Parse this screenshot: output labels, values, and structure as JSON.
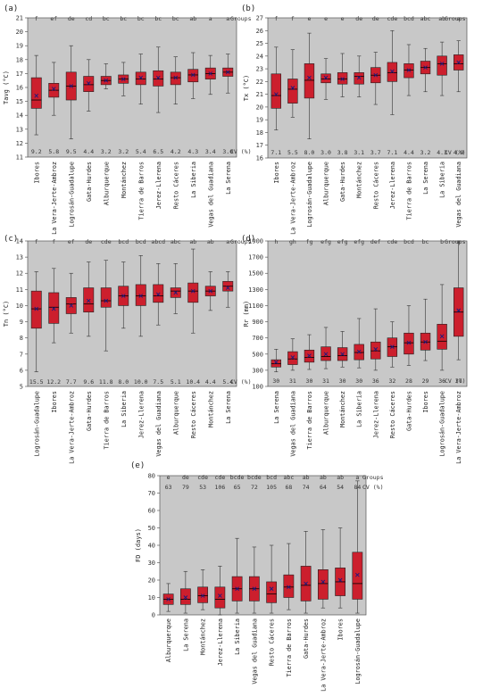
{
  "panel_colors": {
    "background": "#c8c8c8",
    "box": "#cc1f2d",
    "mean": "#1a1a80",
    "median": "#000000",
    "text": "#333333"
  },
  "chart_data": [
    {
      "panel_label": "(a)",
      "type": "boxplot",
      "ylabel": "Tavg (°C)",
      "ylim": [
        11,
        21
      ],
      "yticks": [
        11,
        12,
        13,
        14,
        15,
        16,
        17,
        18,
        19,
        20,
        21
      ],
      "groups_label": "Groups",
      "cv_label": "CV (%)",
      "categories": [
        "Ibores",
        "La Vera-Jerte-Ambroz",
        "Logrosán-Guadalupe",
        "Gata-Hurdes",
        "Alburquerque",
        "Montánchez",
        "Tierra de Barros",
        "Jerez-Llerena",
        "Resto Cáceres",
        "La Siberia",
        "Vegas del Guadiana",
        "La Serena"
      ],
      "groups": [
        "f",
        "ef",
        "de",
        "cd",
        "bc",
        "bc",
        "bc",
        "bc",
        "bc",
        "ab",
        "a",
        "a"
      ],
      "cv": [
        "9.2",
        "5.8",
        "9.5",
        "4.4",
        "3.2",
        "3.2",
        "5.4",
        "6.5",
        "4.2",
        "4.3",
        "3.4",
        "3.0"
      ],
      "whisker_low": [
        12.6,
        14.0,
        12.3,
        14.3,
        15.9,
        15.4,
        14.8,
        14.2,
        14.8,
        15.2,
        15.5,
        15.6
      ],
      "q1": [
        14.5,
        15.3,
        15.1,
        15.7,
        16.2,
        16.3,
        16.2,
        16.1,
        16.2,
        16.4,
        16.6,
        16.8
      ],
      "median": [
        15.1,
        15.8,
        16.1,
        16.2,
        16.5,
        16.6,
        16.6,
        16.6,
        16.7,
        16.9,
        17.0,
        17.1
      ],
      "q3": [
        16.7,
        16.3,
        17.1,
        16.8,
        16.8,
        16.9,
        17.1,
        17.2,
        17.1,
        17.3,
        17.4,
        17.4
      ],
      "whisker_high": [
        18.3,
        17.8,
        19.0,
        18.0,
        17.7,
        17.8,
        18.4,
        18.9,
        18.2,
        18.5,
        18.3,
        18.4
      ],
      "mean": [
        15.4,
        15.9,
        16.1,
        16.3,
        16.5,
        16.6,
        16.7,
        16.7,
        16.7,
        16.9,
        17.0,
        17.1
      ]
    },
    {
      "panel_label": "(b)",
      "type": "boxplot",
      "ylabel": "Tx (°C)",
      "ylim": [
        16,
        27
      ],
      "yticks": [
        16,
        17,
        18,
        19,
        20,
        21,
        22,
        23,
        24,
        25,
        26,
        27
      ],
      "groups_label": "Groups",
      "cv_label": "CV (%)",
      "categories": [
        "Ibores",
        "La Vera-Jerte-Ambroz",
        "Logrosán-Guadalupe",
        "Alburquerque",
        "Gata-Hurdes",
        "Montánchez",
        "Resto Cáceres",
        "Jerez-Llerena",
        "Tierra de Barros",
        "La Serena",
        "La Siberia",
        "Vegas del Guadiana"
      ],
      "groups": [
        "f",
        "f",
        "e",
        "e",
        "e",
        "de",
        "de",
        "cde",
        "bcd",
        "abc",
        "ab",
        "a"
      ],
      "cv": [
        "7.1",
        "5.5",
        "8.0",
        "3.0",
        "3.8",
        "3.1",
        "3.7",
        "7.1",
        "4.4",
        "3.2",
        "4.3",
        "4.9"
      ],
      "whisker_low": [
        18.2,
        19.2,
        17.5,
        20.6,
        20.8,
        20.8,
        20.2,
        19.4,
        20.9,
        21.2,
        20.9,
        21.2
      ],
      "q1": [
        19.9,
        20.3,
        20.7,
        21.9,
        21.8,
        21.8,
        21.9,
        22.0,
        22.3,
        22.6,
        22.5,
        22.9
      ],
      "median": [
        20.9,
        21.4,
        22.1,
        22.2,
        22.2,
        22.4,
        22.5,
        22.7,
        22.9,
        23.1,
        23.4,
        23.4
      ],
      "q3": [
        22.6,
        22.2,
        23.4,
        22.6,
        22.7,
        22.7,
        23.1,
        23.5,
        23.4,
        23.6,
        24.0,
        24.1
      ],
      "whisker_high": [
        24.7,
        24.5,
        25.8,
        23.8,
        24.2,
        24.0,
        24.3,
        26.0,
        24.9,
        24.6,
        25.1,
        25.2
      ],
      "mean": [
        21.0,
        21.5,
        22.3,
        22.3,
        22.2,
        22.3,
        22.5,
        22.8,
        22.9,
        23.1,
        23.4,
        23.5
      ]
    },
    {
      "panel_label": "(c)",
      "type": "boxplot",
      "ylabel": "Tn (°C)",
      "ylim": [
        5,
        14
      ],
      "yticks": [
        5,
        6,
        7,
        8,
        9,
        10,
        11,
        12,
        13,
        14
      ],
      "groups_label": "Groups",
      "cv_label": "CV (%)",
      "categories": [
        "Logrosán-Guadalupe",
        "Ibores",
        "La Vera-Jerte-Ambroz",
        "Gata-Hurdes",
        "Tierra de Barros",
        "La Siberia",
        "Jerez-Llerena",
        "Vegas del Guadiana",
        "Alburquerque",
        "Resto Cáceres",
        "Montánchez",
        "La Serena"
      ],
      "groups": [
        "f",
        "f",
        "ef",
        "de",
        "cde",
        "bcd",
        "bcd",
        "abcd",
        "abc",
        "ab",
        "ab",
        "a"
      ],
      "cv": [
        "15.5",
        "12.2",
        "7.7",
        "9.6",
        "11.8",
        "8.0",
        "10.0",
        "7.5",
        "5.1",
        "10.4",
        "4.4",
        "5.4"
      ],
      "whisker_low": [
        5.9,
        7.7,
        8.3,
        8.1,
        7.2,
        8.6,
        8.1,
        8.8,
        9.5,
        8.3,
        9.7,
        9.9
      ],
      "q1": [
        8.6,
        8.9,
        9.5,
        9.6,
        9.9,
        10.0,
        10.0,
        10.2,
        10.5,
        10.2,
        10.6,
        10.9
      ],
      "median": [
        9.8,
        9.9,
        10.1,
        10.1,
        10.3,
        10.6,
        10.6,
        10.6,
        10.9,
        10.9,
        10.9,
        11.2
      ],
      "q3": [
        10.9,
        10.8,
        10.5,
        11.1,
        11.1,
        11.2,
        11.3,
        11.3,
        11.1,
        11.4,
        11.2,
        11.5
      ],
      "whisker_high": [
        12.1,
        12.3,
        12.0,
        12.7,
        12.8,
        12.7,
        13.1,
        12.6,
        12.6,
        13.5,
        12.1,
        12.1
      ],
      "mean": [
        9.8,
        9.8,
        10.0,
        10.3,
        10.3,
        10.6,
        10.6,
        10.7,
        10.8,
        10.9,
        10.9,
        11.1
      ]
    },
    {
      "panel_label": "(d)",
      "type": "boxplot",
      "ylabel": "Rr (mm)",
      "ylim": [
        100,
        1900
      ],
      "yticks": [
        100,
        300,
        500,
        700,
        900,
        1100,
        1300,
        1500,
        1700,
        1900
      ],
      "groups_label": "Groups",
      "cv_label": "CV (%)",
      "categories": [
        "La Serena",
        "Vegas del Guadiana",
        "Tierra de Barros",
        "Alburquerque",
        "Montánchez",
        "La Siberia",
        "Jerez-Llerena",
        "Resto Cáceres",
        "Gata-Hurdes",
        "Ibores",
        "Logrosán-Guadalupe",
        "La Vera-Jerte-Ambroz"
      ],
      "groups": [
        "h",
        "gh",
        "fg",
        "efg",
        "efg",
        "efg",
        "def",
        "cde",
        "bcd",
        "bc",
        "b",
        "a"
      ],
      "cv": [
        "30",
        "31",
        "30",
        "31",
        "30",
        "30",
        "36",
        "32",
        "28",
        "29",
        "36",
        "37"
      ],
      "whisker_low": [
        280,
        300,
        310,
        320,
        340,
        330,
        300,
        340,
        360,
        420,
        300,
        430
      ],
      "q1": [
        340,
        370,
        400,
        420,
        420,
        430,
        440,
        470,
        500,
        550,
        560,
        720
      ],
      "median": [
        380,
        440,
        460,
        470,
        480,
        520,
        540,
        590,
        640,
        650,
        660,
        1020
      ],
      "q3": [
        430,
        530,
        550,
        590,
        580,
        620,
        650,
        700,
        760,
        760,
        870,
        1320
      ],
      "whisker_high": [
        560,
        690,
        740,
        830,
        780,
        940,
        1060,
        900,
        1100,
        1180,
        1360,
        1900
      ],
      "mean": [
        400,
        460,
        480,
        500,
        500,
        530,
        560,
        590,
        640,
        650,
        720,
        1040
      ]
    },
    {
      "panel_label": "(e)",
      "type": "boxplot",
      "ylabel": "FD (days)",
      "ylim": [
        0,
        80
      ],
      "yticks": [
        0,
        10,
        20,
        30,
        40,
        50,
        60,
        70,
        80
      ],
      "groups_label": "Groups",
      "cv_label": "CV (%)",
      "categories": [
        "Alburquerque",
        "La Serena",
        "Montánchez",
        "Jerez-Llerena",
        "La Siberia",
        "Vegas del Guadiana",
        "Resto Cáceres",
        "Tierra de Barros",
        "Gata-Hurdes",
        "La Vera-Jerte-Ambroz",
        "Ibores",
        "Logrosán-Guadalupe"
      ],
      "groups": [
        "e",
        "de",
        "cde",
        "cde",
        "bcde",
        "bcde",
        "bcd",
        "abc",
        "ab",
        "ab",
        "ab",
        "a"
      ],
      "cv": [
        "63",
        "79",
        "53",
        "106",
        "65",
        "72",
        "105",
        "68",
        "74",
        "64",
        "54",
        "84"
      ],
      "whisker_low": [
        2,
        1,
        3,
        0,
        1,
        1,
        1,
        3,
        1,
        4,
        4,
        1
      ],
      "q1": [
        6,
        6,
        7,
        4,
        8,
        8,
        7,
        10,
        8,
        9,
        11,
        9
      ],
      "median": [
        9,
        9,
        11,
        9,
        15,
        15,
        12,
        16,
        17,
        18,
        19,
        18
      ],
      "q3": [
        12,
        15,
        16,
        16,
        22,
        22,
        19,
        23,
        28,
        26,
        27,
        36
      ],
      "whisker_high": [
        18,
        25,
        26,
        28,
        44,
        39,
        40,
        41,
        48,
        49,
        50,
        77
      ],
      "mean": [
        9,
        10,
        11,
        11,
        15,
        15,
        15,
        16,
        18,
        19,
        20,
        23
      ]
    }
  ]
}
